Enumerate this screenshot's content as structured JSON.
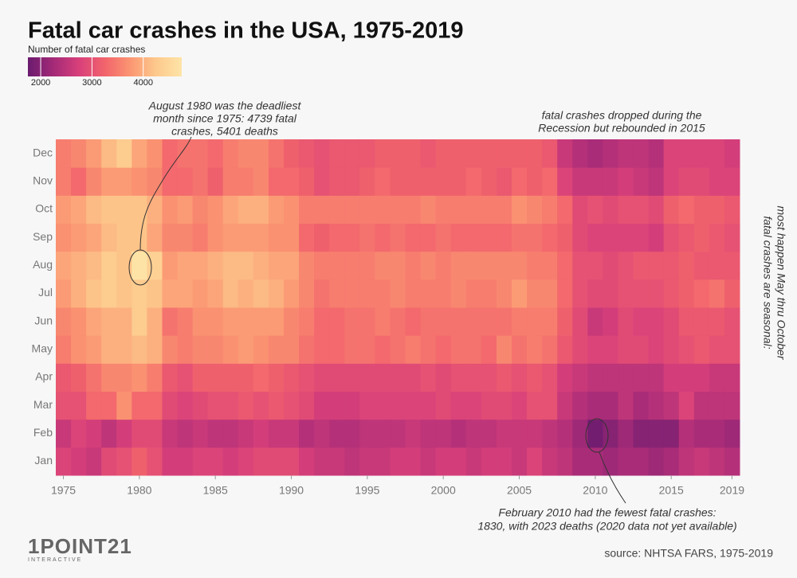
{
  "chart_data": {
    "type": "heatmap",
    "title": "Fatal car crashes in the USA, 1975-2019",
    "colorbar_label": "Number of fatal car crashes",
    "clim": [
      1750,
      4750
    ],
    "colorbar_ticks": [
      2000,
      3000,
      4000
    ],
    "colormap": [
      "#6a1b6e",
      "#a42a78",
      "#d8407a",
      "#f2646c",
      "#fb9672",
      "#fdc98c",
      "#fee4a8"
    ],
    "x": [
      1975,
      1976,
      1977,
      1978,
      1979,
      1980,
      1981,
      1982,
      1983,
      1984,
      1985,
      1986,
      1987,
      1988,
      1989,
      1990,
      1991,
      1992,
      1993,
      1994,
      1995,
      1996,
      1997,
      1998,
      1999,
      2000,
      2001,
      2002,
      2003,
      2004,
      2005,
      2006,
      2007,
      2008,
      2009,
      2010,
      2011,
      2012,
      2013,
      2014,
      2015,
      2016,
      2017,
      2018,
      2019
    ],
    "xlim": [
      1974.5,
      2019.5
    ],
    "xticks": [
      1975,
      1980,
      1985,
      1990,
      1995,
      2000,
      2005,
      2010,
      2015,
      2019
    ],
    "y": [
      "Jan",
      "Feb",
      "Mar",
      "Apr",
      "May",
      "Jun",
      "Jul",
      "Aug",
      "Sep",
      "Oct",
      "Nov",
      "Dec"
    ],
    "values": [
      [
        2800,
        2600,
        3000,
        3100,
        3500,
        3600,
        3800,
        3900,
        3700,
        3800,
        3500,
        3500
      ],
      [
        2700,
        2800,
        3000,
        3200,
        3700,
        3700,
        4000,
        4000,
        3800,
        3900,
        3300,
        3600
      ],
      [
        2600,
        2700,
        3300,
        3400,
        3800,
        3900,
        4200,
        4100,
        3900,
        4100,
        3600,
        3800
      ],
      [
        2900,
        2500,
        3300,
        3600,
        4000,
        4000,
        4300,
        4300,
        4100,
        4200,
        3800,
        4100
      ],
      [
        3000,
        2700,
        3700,
        3600,
        4000,
        4000,
        4200,
        4200,
        4200,
        4200,
        3800,
        4300
      ],
      [
        3200,
        2900,
        3300,
        3700,
        4100,
        4300,
        4300,
        4739,
        4200,
        4200,
        3700,
        3900
      ],
      [
        3000,
        2900,
        3300,
        3500,
        4000,
        4000,
        4200,
        4400,
        3900,
        4000,
        3600,
        3700
      ],
      [
        2700,
        2600,
        2900,
        3100,
        3600,
        3400,
        3900,
        3800,
        3600,
        3700,
        3300,
        3300
      ],
      [
        2700,
        2500,
        2800,
        3000,
        3500,
        3500,
        3900,
        3900,
        3600,
        3800,
        3300,
        3400
      ],
      [
        2800,
        2600,
        2900,
        3200,
        3600,
        3700,
        3800,
        3900,
        3500,
        3600,
        3400,
        3400
      ],
      [
        2800,
        2500,
        3000,
        3200,
        3600,
        3700,
        3900,
        4000,
        3700,
        3700,
        3200,
        3300
      ],
      [
        2700,
        2500,
        3000,
        3200,
        3700,
        3800,
        4100,
        4100,
        3800,
        3900,
        3500,
        3500
      ],
      [
        2800,
        2600,
        3100,
        3200,
        3800,
        3800,
        4000,
        4100,
        3800,
        4000,
        3500,
        3600
      ],
      [
        2900,
        2700,
        3000,
        3300,
        3700,
        3800,
        4100,
        4000,
        3800,
        4000,
        3600,
        3600
      ],
      [
        2900,
        2600,
        3100,
        3200,
        3600,
        3800,
        4000,
        3900,
        3700,
        3800,
        3300,
        3400
      ],
      [
        2900,
        2600,
        3000,
        3100,
        3600,
        3600,
        3800,
        3900,
        3700,
        3700,
        3300,
        3200
      ],
      [
        2700,
        2400,
        2900,
        3000,
        3400,
        3500,
        3600,
        3600,
        3300,
        3500,
        3200,
        3100
      ],
      [
        2600,
        2500,
        2700,
        2900,
        3300,
        3300,
        3400,
        3500,
        3200,
        3500,
        3000,
        3000
      ],
      [
        2600,
        2400,
        2700,
        2900,
        3300,
        3300,
        3500,
        3500,
        3300,
        3500,
        3100,
        3100
      ],
      [
        2500,
        2400,
        2700,
        2900,
        3400,
        3400,
        3500,
        3500,
        3300,
        3500,
        3100,
        3100
      ],
      [
        2600,
        2500,
        2800,
        2900,
        3400,
        3400,
        3500,
        3500,
        3400,
        3500,
        3200,
        3100
      ],
      [
        2600,
        2500,
        2800,
        2900,
        3300,
        3500,
        3500,
        3600,
        3300,
        3500,
        3300,
        3200
      ],
      [
        2700,
        2500,
        2800,
        2900,
        3400,
        3400,
        3600,
        3600,
        3400,
        3500,
        3200,
        3200
      ],
      [
        2700,
        2600,
        2800,
        2900,
        3500,
        3300,
        3500,
        3500,
        3300,
        3500,
        3200,
        3200
      ],
      [
        2600,
        2500,
        2800,
        3000,
        3400,
        3400,
        3500,
        3600,
        3300,
        3600,
        3200,
        3100
      ],
      [
        2700,
        2500,
        2900,
        2900,
        3300,
        3400,
        3500,
        3500,
        3400,
        3500,
        3200,
        3200
      ],
      [
        2700,
        2400,
        2800,
        3000,
        3400,
        3400,
        3600,
        3600,
        3300,
        3500,
        3200,
        3200
      ],
      [
        2600,
        2500,
        2800,
        3000,
        3400,
        3400,
        3500,
        3600,
        3300,
        3500,
        3300,
        3200
      ],
      [
        2700,
        2500,
        2900,
        3000,
        3300,
        3400,
        3500,
        3600,
        3300,
        3500,
        3200,
        3200
      ],
      [
        2700,
        2600,
        2900,
        3100,
        3600,
        3400,
        3600,
        3600,
        3300,
        3500,
        3100,
        3200
      ],
      [
        2600,
        2600,
        2800,
        3000,
        3400,
        3500,
        3800,
        3600,
        3400,
        3700,
        3300,
        3200
      ],
      [
        2800,
        2600,
        3000,
        3100,
        3500,
        3500,
        3600,
        3500,
        3400,
        3600,
        3200,
        3200
      ],
      [
        2600,
        2500,
        3000,
        3000,
        3400,
        3500,
        3600,
        3500,
        3300,
        3500,
        3300,
        3100
      ],
      [
        2500,
        2400,
        2600,
        2700,
        3100,
        3200,
        3300,
        3300,
        3200,
        3300,
        2800,
        2600
      ],
      [
        2300,
        2200,
        2400,
        2600,
        2900,
        2900,
        3000,
        3000,
        2900,
        2900,
        2600,
        2400
      ],
      [
        2300,
        1830,
        2300,
        2500,
        2800,
        2600,
        2900,
        3000,
        2800,
        3000,
        2600,
        2300
      ],
      [
        2200,
        2000,
        2300,
        2500,
        2800,
        2700,
        2900,
        2900,
        2800,
        2900,
        2600,
        2400
      ],
      [
        2300,
        2200,
        2500,
        2500,
        2900,
        2900,
        3000,
        3000,
        2800,
        3000,
        2700,
        2500
      ],
      [
        2300,
        2000,
        2300,
        2500,
        2900,
        2800,
        3000,
        3100,
        2800,
        3000,
        2600,
        2500
      ],
      [
        2200,
        2000,
        2400,
        2500,
        2800,
        2800,
        3000,
        3100,
        2700,
        2900,
        2500,
        2400
      ],
      [
        2300,
        2000,
        2500,
        2700,
        2900,
        2900,
        3100,
        3100,
        3000,
        3200,
        2800,
        2800
      ],
      [
        2500,
        2400,
        2800,
        2700,
        3000,
        3100,
        3200,
        3200,
        3100,
        3300,
        2900,
        2800
      ],
      [
        2600,
        2300,
        2500,
        2700,
        3100,
        3100,
        3300,
        3100,
        3200,
        3200,
        2900,
        2800
      ],
      [
        2500,
        2300,
        2500,
        2600,
        3000,
        3100,
        3400,
        3100,
        3100,
        3200,
        2800,
        2800
      ],
      [
        2400,
        2200,
        2500,
        2600,
        3000,
        3000,
        3200,
        3100,
        3000,
        3100,
        2800,
        2700
      ]
    ],
    "annotations": {
      "deadliest": [
        "August 1980 was the deadliest",
        "month since 1975: 4739 fatal",
        "crashes, 5401 deaths"
      ],
      "recession": [
        "fatal crashes dropped during the",
        "Recession but rebounded in 2015"
      ],
      "seasonal": [
        "fatal crashes are seasonal:",
        "most happen May thru October"
      ],
      "fewest": [
        "February 2010 had the fewest fatal crashes:",
        "1830, with 2023 deaths (2020 data not yet available)"
      ]
    },
    "source": "source: NHTSA FARS, 1975-2019",
    "logo": {
      "main": "1POINT21",
      "sub": "INTERACTIVE"
    }
  }
}
